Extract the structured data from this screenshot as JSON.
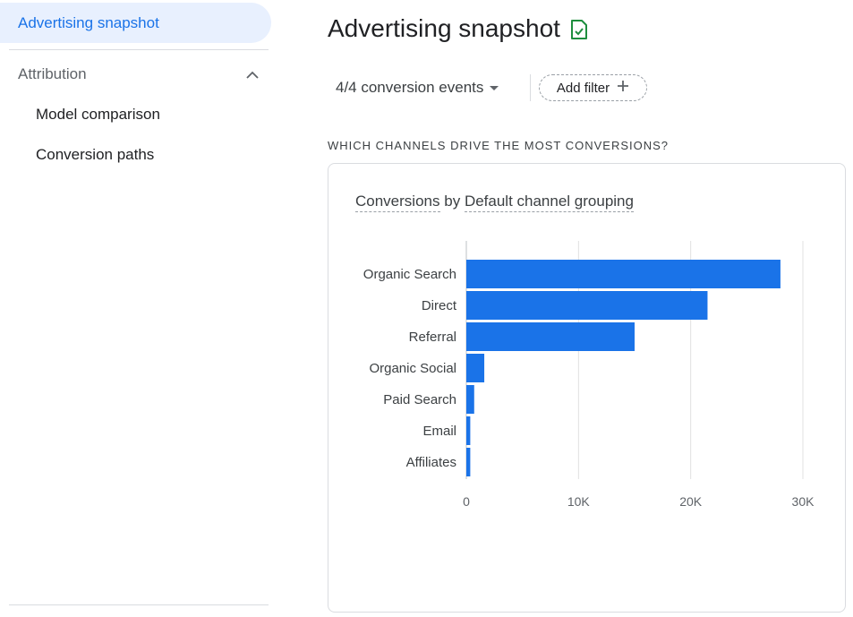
{
  "sidebar": {
    "active_item": "Advertising snapshot",
    "section_title": "Attribution",
    "items": [
      {
        "label": "Model comparison"
      },
      {
        "label": "Conversion paths"
      }
    ]
  },
  "main": {
    "title": "Advertising snapshot",
    "events_dropdown": "4/4 conversion events",
    "add_filter": "Add filter",
    "question": "WHICH CHANNELS DRIVE THE MOST CONVERSIONS?",
    "card": {
      "title_metric": "Conversions",
      "title_by": "by",
      "title_dimension": "Default channel grouping"
    }
  },
  "colors": {
    "accent": "#1a73e8",
    "bar": "#1a73e8",
    "icon_green": "#1e8e3e"
  },
  "chart_data": {
    "type": "bar",
    "orientation": "horizontal",
    "title": "Conversions by Default channel grouping",
    "categories": [
      "Organic Search",
      "Direct",
      "Referral",
      "Organic Social",
      "Paid Search",
      "Email",
      "Affiliates"
    ],
    "values": [
      28000,
      21500,
      15000,
      1600,
      700,
      350,
      350
    ],
    "xlim": [
      0,
      30000
    ],
    "xticks": [
      0,
      10000,
      20000,
      30000
    ],
    "xtick_labels": [
      "0",
      "10K",
      "20K",
      "30K"
    ],
    "grid": true
  }
}
